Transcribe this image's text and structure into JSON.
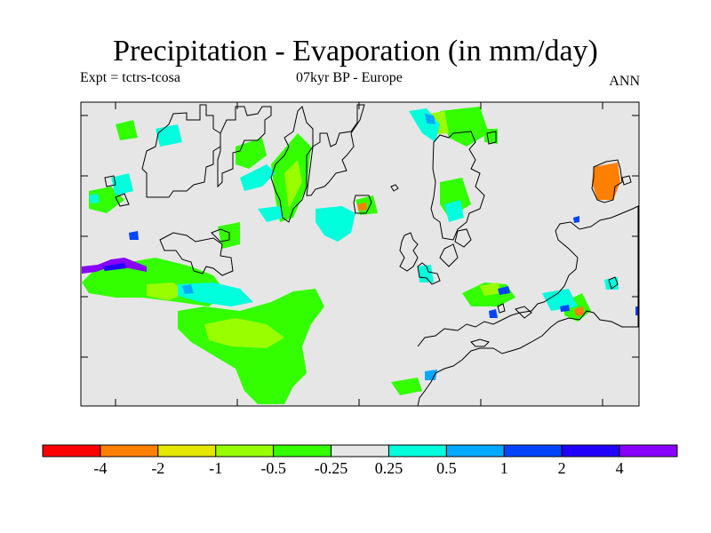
{
  "title": "Precipitation - Evaporation (in mm/day)",
  "expt_label": "Expt = tctrs-tcosa",
  "period_label": "07kyr BP - Europe",
  "season_label": "ANN",
  "colors": {
    "background": "#e6e6e6",
    "coast": "#000000",
    "neg_0_25": "#22ee22",
    "neg_0_5": "#99ff00",
    "neg_1": "#dddd00",
    "neg_2": "#ff8800",
    "neg_4": "#ff0000",
    "pos_0_25": "#00ffdd",
    "pos_0_5": "#00aaff",
    "pos_1": "#0044ff",
    "pos_2": "#2200ff",
    "pos_4": "#8800ff"
  },
  "legend": {
    "bins": [
      {
        "color": "#ff0000"
      },
      {
        "color": "#ff8000"
      },
      {
        "color": "#e6e600"
      },
      {
        "color": "#99ff00"
      },
      {
        "color": "#33ff00"
      },
      {
        "color": "#e6e6e6"
      },
      {
        "color": "#00ffdd"
      },
      {
        "color": "#00aaff"
      },
      {
        "color": "#0044ff"
      },
      {
        "color": "#2200ff"
      },
      {
        "color": "#8800ff"
      }
    ],
    "tick_labels": [
      "-4",
      "-2",
      "-1",
      "-0.5",
      "-0.25",
      "0.25",
      "0.5",
      "1",
      "2",
      "4"
    ]
  }
}
